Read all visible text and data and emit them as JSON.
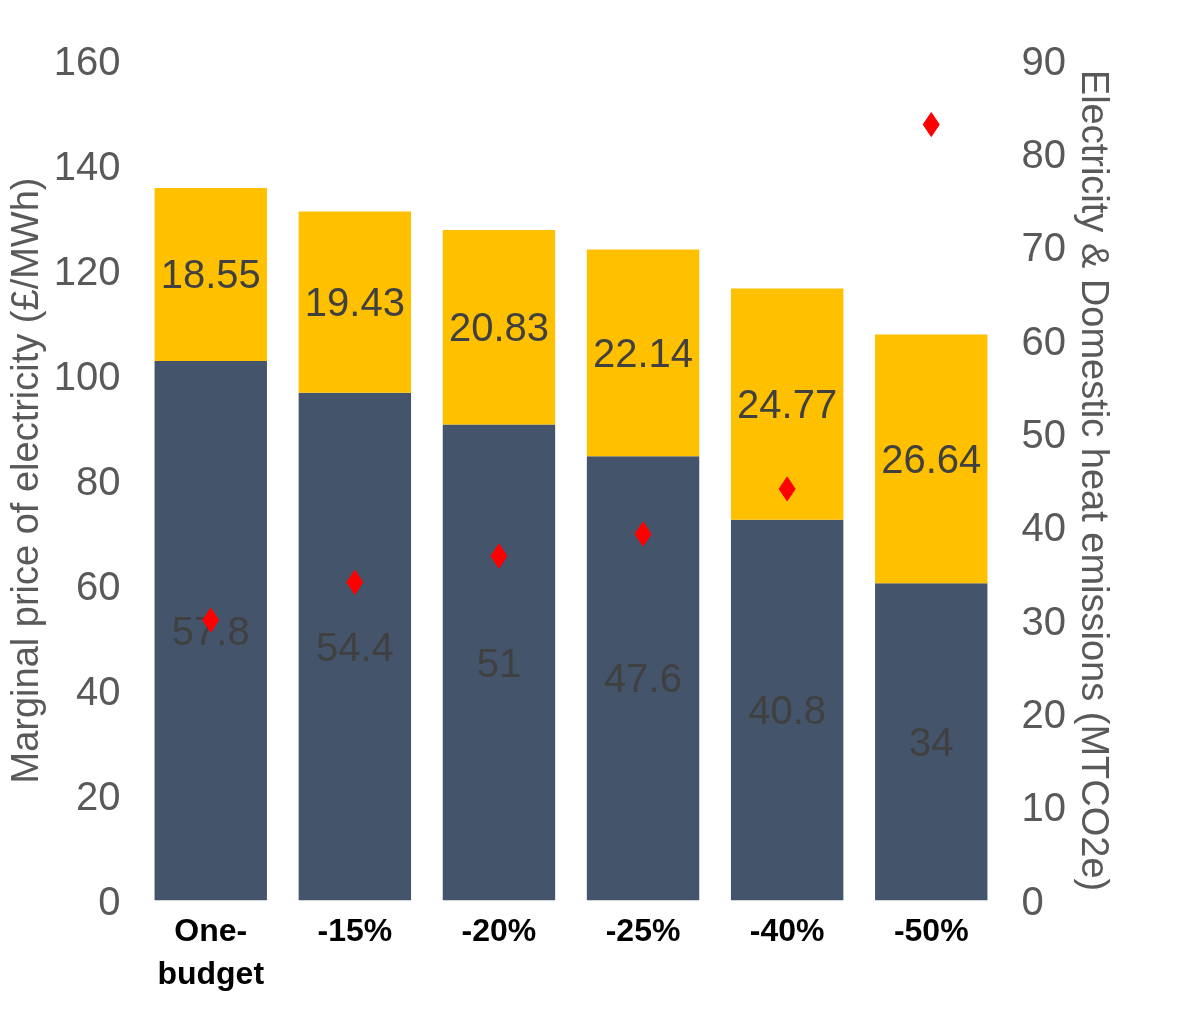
{
  "chart_data": {
    "type": "bar",
    "stacked": true,
    "categories": [
      "One-budget",
      "-15%",
      "-20%",
      "-25%",
      "-40%",
      "-50%"
    ],
    "ylabel": "Marginal price of electricity (£/MWh)",
    "y2label": "Electricity & Domestic heat emissions (MTCO2e)",
    "ylim": [
      0,
      160
    ],
    "yticks": [
      0,
      20,
      40,
      60,
      80,
      100,
      120,
      140,
      160
    ],
    "y2lim": [
      0,
      90
    ],
    "y2ticks": [
      0,
      10,
      20,
      30,
      40,
      50,
      60,
      70,
      80,
      90
    ],
    "grid": false,
    "series": [
      {
        "axis": "y2",
        "color": "#44546a",
        "values": [
          57.8,
          54.4,
          51,
          47.6,
          40.8,
          34
        ],
        "value_labels": [
          "57.8",
          "54.4",
          "51",
          "47.6",
          "40.8",
          "34"
        ]
      },
      {
        "axis": "y2",
        "color": "#ffc000",
        "values": [
          18.55,
          19.43,
          20.83,
          22.14,
          24.77,
          26.64
        ],
        "value_labels": [
          "18.55",
          "19.43",
          "20.83",
          "22.14",
          "24.77",
          "26.64"
        ]
      },
      {
        "type": "scatter",
        "axis": "y",
        "marker": "diamond",
        "color": "#ff0000",
        "values": [
          53.4,
          60.6,
          65.6,
          69.8,
          78.4,
          147.8
        ]
      }
    ]
  }
}
